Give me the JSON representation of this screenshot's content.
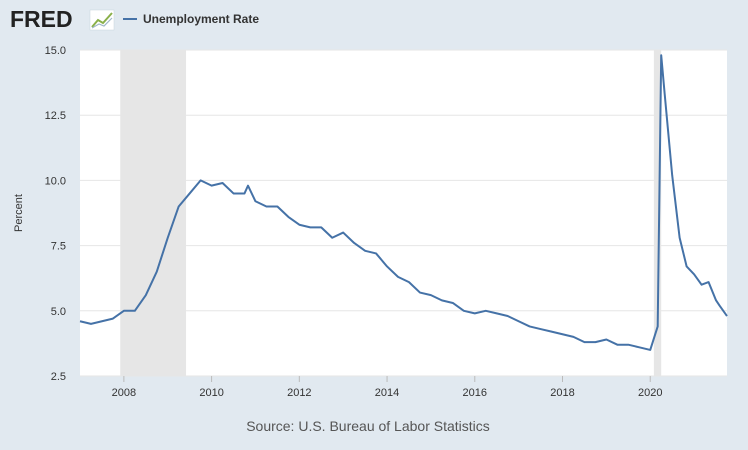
{
  "header": {
    "logo_text": "FRED",
    "logo_icon": "line-chart-icon",
    "legend_label": "Unemployment Rate"
  },
  "source_text": "Source: U.S. Bureau of Labor Statistics",
  "colors": {
    "background": "#e1e9f0",
    "plot_background": "#ffffff",
    "line": "#4572a7",
    "recession_band": "#e6e6e6",
    "grid": "#e6e6e6"
  },
  "chart_data": {
    "type": "line",
    "title": "",
    "xlabel": "",
    "ylabel": "Percent",
    "xlim": [
      2007.0,
      2021.75
    ],
    "ylim": [
      2.5,
      15.0
    ],
    "x_ticks": [
      2008,
      2010,
      2012,
      2014,
      2016,
      2018,
      2020
    ],
    "x_tick_labels": [
      "2008",
      "2010",
      "2012",
      "2014",
      "2016",
      "2018",
      "2020"
    ],
    "y_ticks": [
      2.5,
      5.0,
      7.5,
      10.0,
      12.5,
      15.0
    ],
    "y_tick_labels": [
      "2.5",
      "5.0",
      "7.5",
      "10.0",
      "12.5",
      "15.0"
    ],
    "grid": "horizontal",
    "legend_position": "top-left",
    "recessions": [
      {
        "start": 2007.917,
        "end": 2009.417
      },
      {
        "start": 2020.083,
        "end": 2020.25
      }
    ],
    "series": [
      {
        "name": "Unemployment Rate",
        "x": [
          2007.0,
          2007.25,
          2007.5,
          2007.75,
          2008.0,
          2008.25,
          2008.5,
          2008.75,
          2009.0,
          2009.25,
          2009.5,
          2009.75,
          2010.0,
          2010.25,
          2010.5,
          2010.75,
          2010.83,
          2011.0,
          2011.25,
          2011.5,
          2011.75,
          2012.0,
          2012.25,
          2012.5,
          2012.75,
          2013.0,
          2013.25,
          2013.5,
          2013.75,
          2014.0,
          2014.25,
          2014.5,
          2014.75,
          2015.0,
          2015.25,
          2015.5,
          2015.75,
          2016.0,
          2016.25,
          2016.5,
          2016.75,
          2017.0,
          2017.25,
          2017.5,
          2017.75,
          2018.0,
          2018.25,
          2018.5,
          2018.75,
          2019.0,
          2019.25,
          2019.5,
          2019.75,
          2020.0,
          2020.17,
          2020.25,
          2020.33,
          2020.5,
          2020.67,
          2020.83,
          2021.0,
          2021.17,
          2021.33,
          2021.5,
          2021.58,
          2021.75
        ],
        "y": [
          4.6,
          4.5,
          4.6,
          4.7,
          5.0,
          5.0,
          5.6,
          6.5,
          7.8,
          9.0,
          9.5,
          10.0,
          9.8,
          9.9,
          9.5,
          9.5,
          9.8,
          9.2,
          9.0,
          9.0,
          8.6,
          8.3,
          8.2,
          8.2,
          7.8,
          8.0,
          7.6,
          7.3,
          7.2,
          6.7,
          6.3,
          6.1,
          5.7,
          5.6,
          5.4,
          5.3,
          5.0,
          4.9,
          5.0,
          4.9,
          4.8,
          4.6,
          4.4,
          4.3,
          4.2,
          4.1,
          4.0,
          3.8,
          3.8,
          3.9,
          3.7,
          3.7,
          3.6,
          3.5,
          4.4,
          14.8,
          13.3,
          10.2,
          7.8,
          6.7,
          6.4,
          6.0,
          6.1,
          5.4,
          5.2,
          4.8
        ]
      }
    ]
  }
}
